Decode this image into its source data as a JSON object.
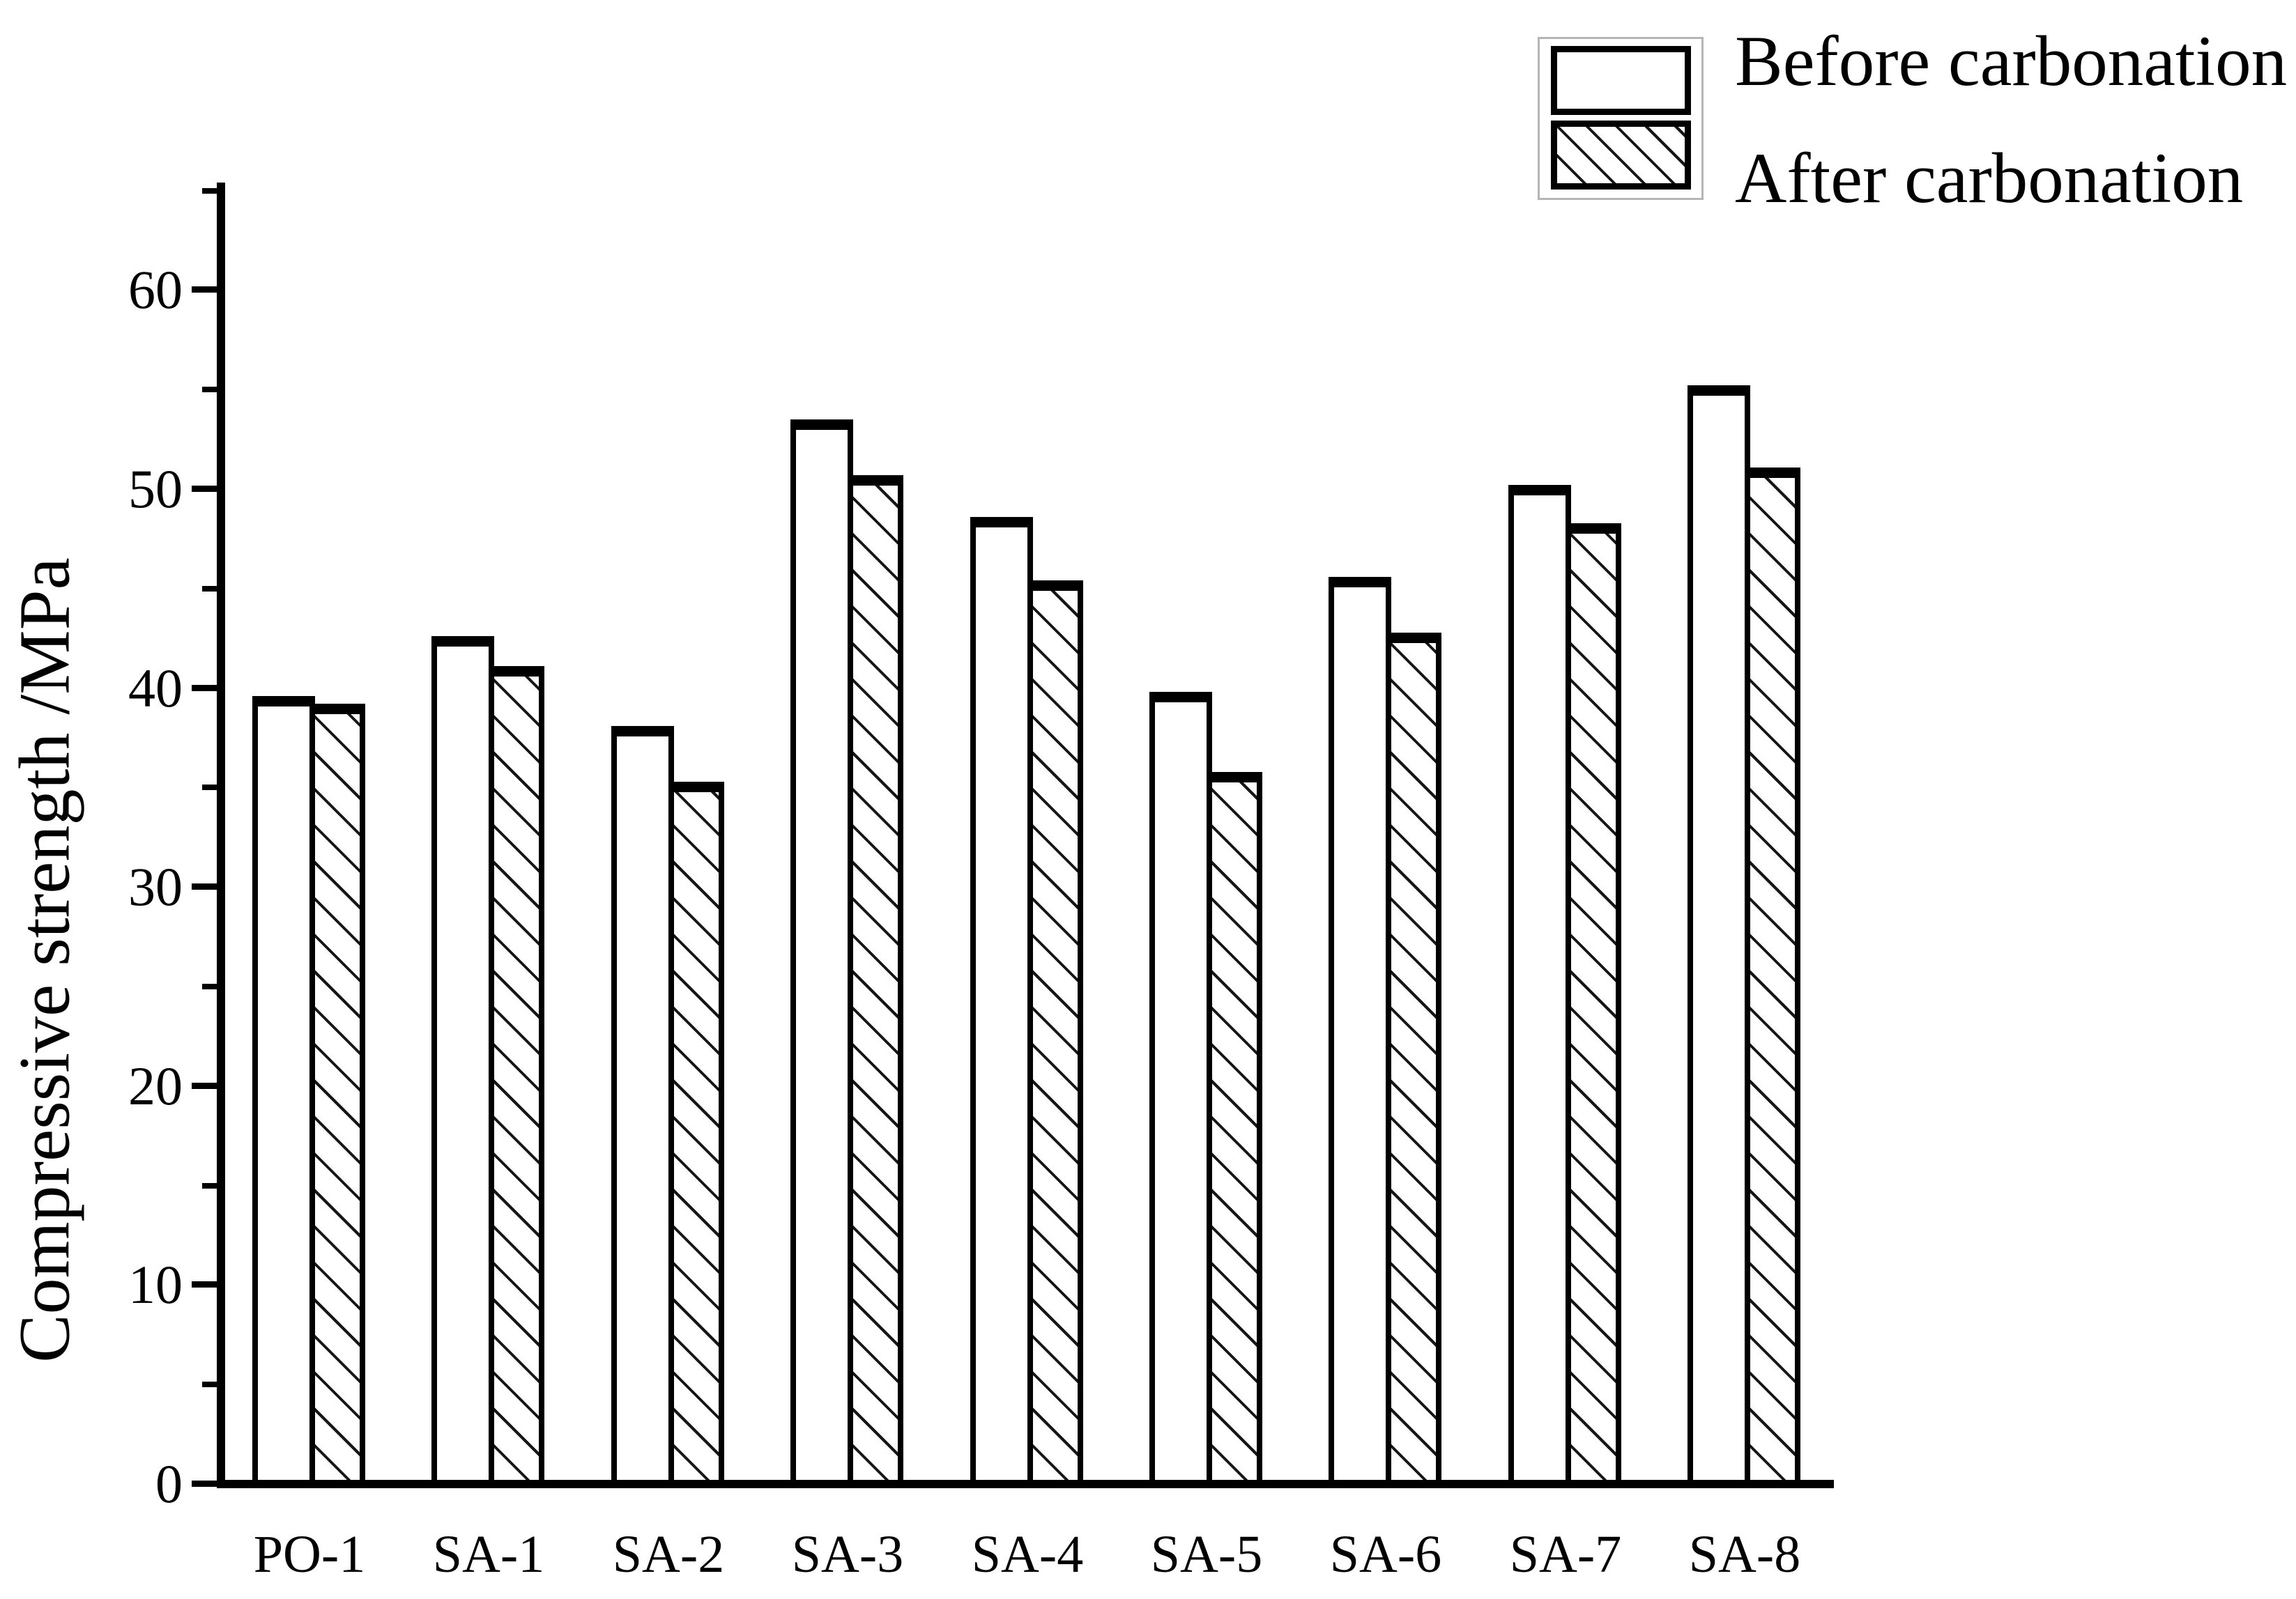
{
  "figure": {
    "background_color": "#ffffff",
    "ink_color": "#000000",
    "legend_border_color": "#b5b5b5"
  },
  "y_axis": {
    "title": "Compressive strength /MPa",
    "tick_labels": [
      "0",
      "10",
      "20",
      "30",
      "40",
      "50",
      "60"
    ]
  },
  "legend": {
    "before_label": "Before carbonation",
    "after_label": "After carbonation"
  },
  "chart_data": {
    "type": "bar",
    "title": "",
    "xlabel": "",
    "ylabel": "Compressive strength /MPa",
    "categories": [
      "PO-1",
      "SA-1",
      "SA-2",
      "SA-3",
      "SA-4",
      "SA-5",
      "SA-6",
      "SA-7",
      "SA-8"
    ],
    "series": [
      {
        "name": "Before carbonation",
        "style": "white-fill-black-outline",
        "values": [
          39.6,
          42.6,
          38.1,
          53.5,
          48.6,
          39.8,
          45.6,
          50.2,
          55.2
        ]
      },
      {
        "name": "After carbonation",
        "style": "diagonal-hatch-black-outline",
        "values": [
          39.2,
          41.1,
          35.3,
          50.7,
          45.4,
          35.8,
          42.8,
          48.3,
          51.1
        ]
      }
    ],
    "ylim": [
      0,
      65
    ],
    "y_major_ticks": [
      0,
      10,
      20,
      30,
      40,
      50,
      60
    ],
    "y_minor_ticks": [
      5,
      15,
      25,
      35,
      45,
      55,
      65
    ],
    "grid": false,
    "legend_position": "top-right"
  }
}
